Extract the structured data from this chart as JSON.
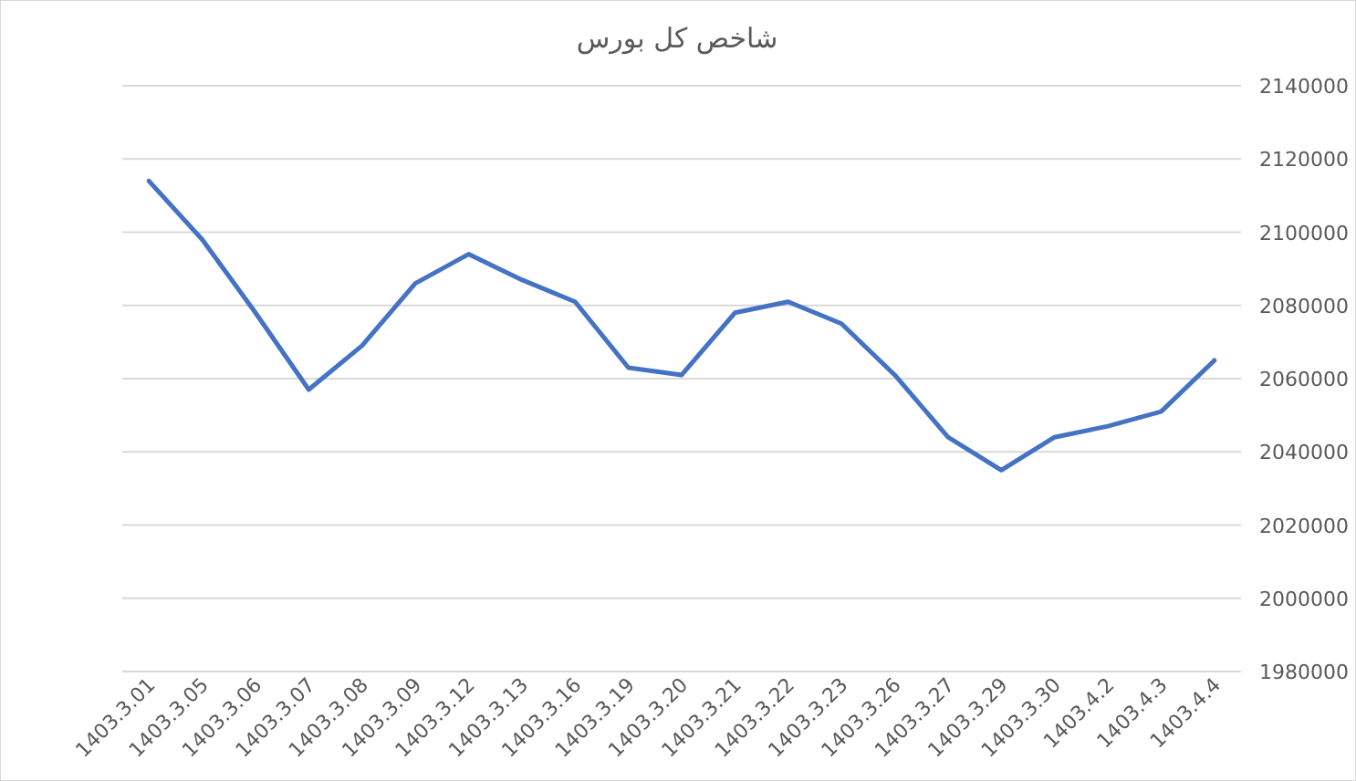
{
  "chart_data": {
    "type": "line",
    "title": "شاخص کل بورس",
    "categories": [
      "1403.3.01",
      "1403.3.05",
      "1403.3.06",
      "1403.3.07",
      "1403.3.08",
      "1403.3.09",
      "1403.3.12",
      "1403.3.13",
      "1403.3.16",
      "1403.3.19",
      "1403.3.20",
      "1403.3.21",
      "1403.3.22",
      "1403.3.23",
      "1403.3.26",
      "1403.3.27",
      "1403.3.29",
      "1403.3.30",
      "1403.4.2",
      "1403.4.3",
      "1403.4.4"
    ],
    "series": [
      {
        "color": "#4472c4",
        "values": [
          2114000,
          2098000,
          2078000,
          2057000,
          2069000,
          2086000,
          2094000,
          2087000,
          2081000,
          2063000,
          2061000,
          2078000,
          2081000,
          2075000,
          2061000,
          2044000,
          2035000,
          2044000,
          2047000,
          2051000,
          2065000
        ]
      }
    ],
    "ylim": [
      1980000,
      2140000
    ],
    "yticks": [
      1980000,
      2000000,
      2020000,
      2040000,
      2060000,
      2080000,
      2100000,
      2120000,
      2140000
    ],
    "grid": "y",
    "marker": "none",
    "line_style": "solid"
  }
}
